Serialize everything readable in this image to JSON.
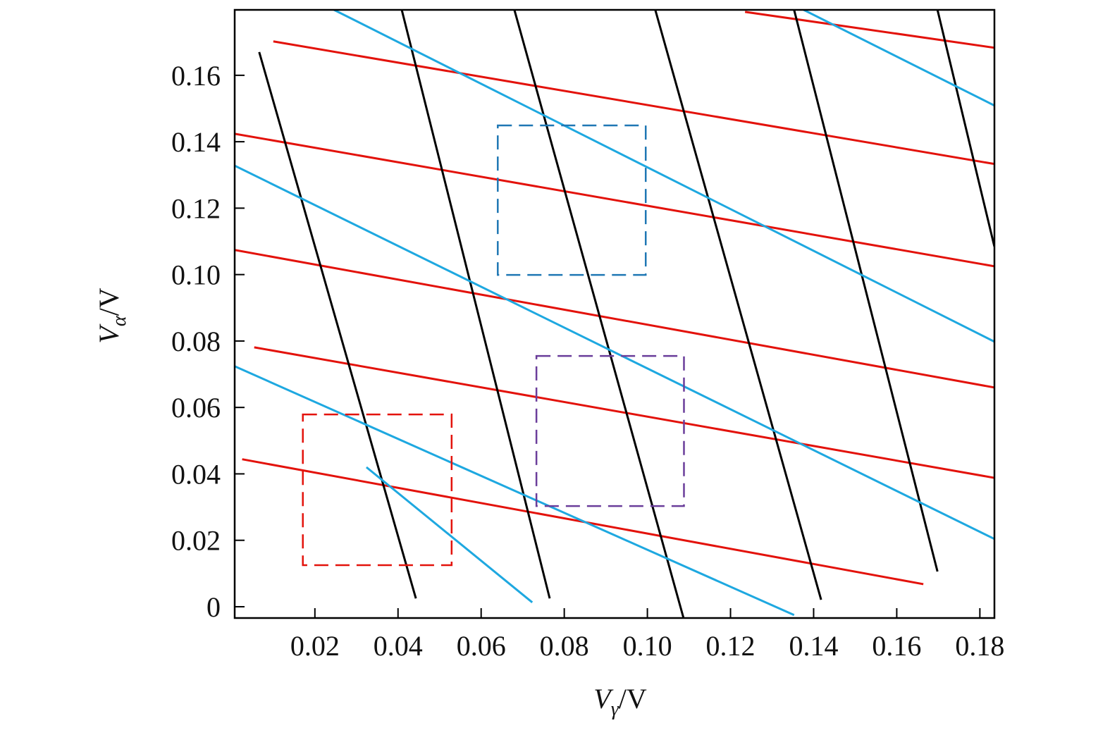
{
  "chart_data": {
    "type": "line",
    "xlabel": [
      "V",
      "γ",
      "/V"
    ],
    "ylabel": [
      "V",
      "α",
      "/V"
    ],
    "xlim": [
      0.0007,
      0.1835
    ],
    "ylim": [
      -0.0034,
      0.1797
    ],
    "xticks": [
      0.02,
      0.04,
      0.06,
      0.08,
      {
        "value": 0.1,
        "label": "0.10"
      },
      0.12,
      0.14,
      0.16,
      0.18
    ],
    "yticks": [
      0,
      0.02,
      0.04,
      0.06,
      0.08,
      {
        "value": 0.1,
        "label": "0.10"
      },
      0.12,
      0.14,
      0.16
    ],
    "series": [
      {
        "color": "#e3120b",
        "x": [
          0.01,
          0.1835,
          null,
          0.0007,
          0.1835,
          null,
          0.0007,
          0.1835,
          null,
          0.0054,
          0.1835,
          null,
          0.0025,
          0.1664,
          null,
          0.1235,
          0.1835
        ],
        "values": [
          0.1702,
          0.1333,
          null,
          0.1424,
          0.1025,
          null,
          0.1074,
          0.066,
          null,
          0.0781,
          0.0388,
          null,
          0.0444,
          0.0068,
          null,
          0.1791,
          0.1683
        ]
      },
      {
        "color": "#000000",
        "x": [
          0.0066,
          0.0443,
          null,
          0.0409,
          0.0765,
          null,
          0.068,
          0.1087,
          null,
          0.1019,
          0.1418,
          null,
          0.1353,
          0.1698,
          null,
          0.1698,
          0.1835
        ],
        "values": [
          0.167,
          0.0025,
          null,
          0.1797,
          0.0025,
          null,
          0.1797,
          -0.0034,
          null,
          0.1797,
          0.0021,
          null,
          0.1797,
          0.0106,
          null,
          0.1797,
          0.1084
        ]
      },
      {
        "color": "#1ea8e0",
        "x": [
          0.0246,
          0.1835,
          null,
          0.0007,
          0.1835,
          null,
          0.0007,
          0.1353,
          null,
          0.1376,
          0.1835,
          null,
          0.0324,
          0.0723
        ],
        "values": [
          0.1797,
          0.0798,
          null,
          0.1328,
          0.0204,
          null,
          0.0724,
          -0.0025,
          null,
          0.1797,
          0.1509,
          null,
          0.042,
          0.0013
        ]
      }
    ],
    "boxes": [
      {
        "color": "#e3120b",
        "x": [
          0.0171,
          0.0529
        ],
        "y": [
          0.0125,
          0.0579
        ]
      },
      {
        "color": "#6a3d9a",
        "x": [
          0.0733,
          0.1088
        ],
        "y": [
          0.0303,
          0.0755
        ]
      },
      {
        "color": "#1f77b4",
        "x": [
          0.064,
          0.0996
        ],
        "y": [
          0.0999,
          0.1449
        ]
      }
    ]
  }
}
